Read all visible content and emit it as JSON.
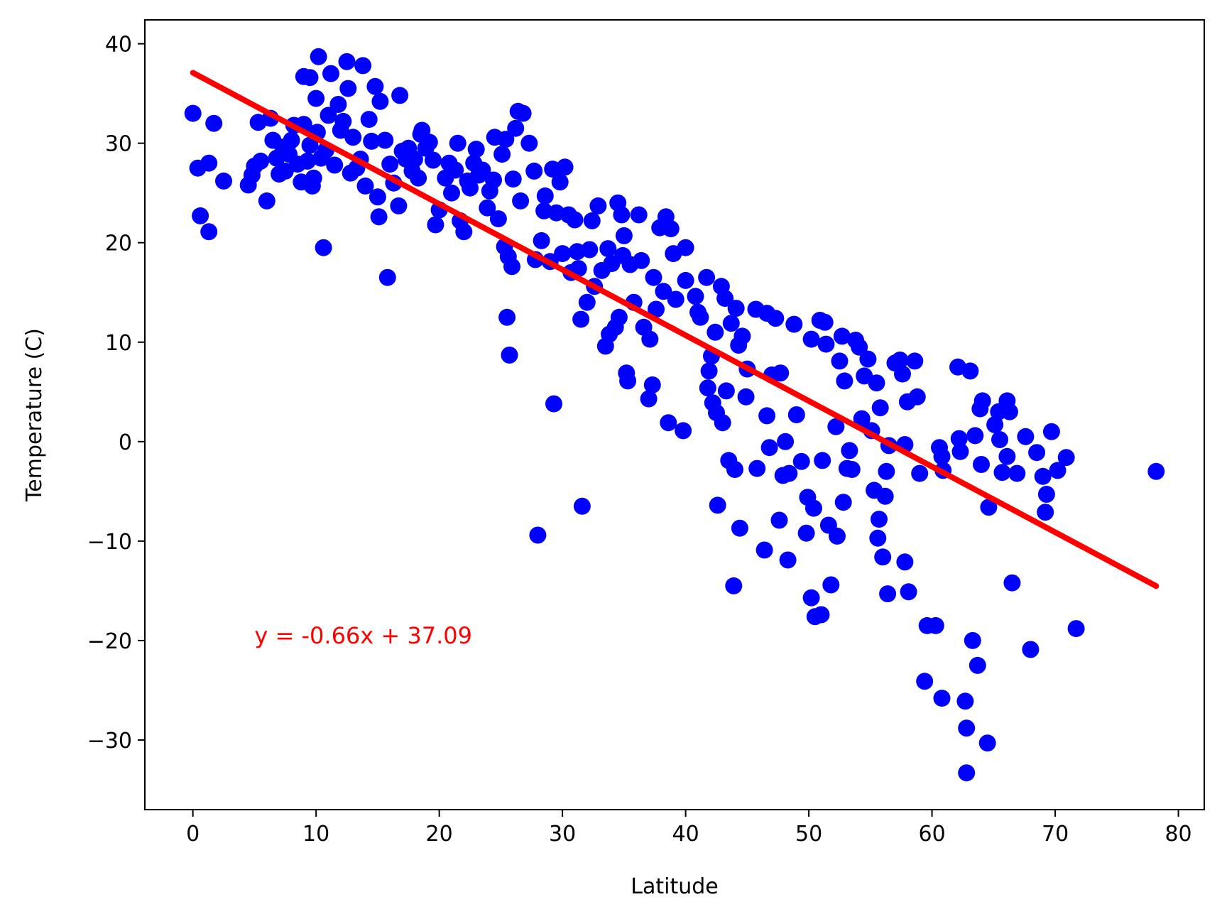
{
  "chart_data": {
    "type": "scatter",
    "title": "",
    "xlabel": "Latitude",
    "ylabel": "Temperature (C)",
    "xlim": [
      -3.9,
      82.1
    ],
    "ylim": [
      -37.0,
      42.4
    ],
    "xticks": [
      0,
      10,
      20,
      30,
      40,
      50,
      60,
      70,
      80
    ],
    "yticks": [
      -30,
      -20,
      -10,
      0,
      10,
      20,
      30,
      40
    ],
    "xtick_labels": [
      "0",
      "10",
      "20",
      "30",
      "40",
      "50",
      "60",
      "70",
      "80"
    ],
    "ytick_labels": [
      "−30",
      "−20",
      "−10",
      "0",
      "10",
      "20",
      "30",
      "40"
    ],
    "grid": false,
    "legend": "none",
    "series": [
      {
        "type": "scatter",
        "color": "#0000ff",
        "points": [
          [
            0,
            33
          ],
          [
            0.4,
            27.5
          ],
          [
            0.6,
            22.7
          ],
          [
            1.3,
            28
          ],
          [
            1.3,
            21.1
          ],
          [
            1.7,
            32
          ],
          [
            2.5,
            26.2
          ],
          [
            4.5,
            25.8
          ],
          [
            4.8,
            26.8
          ],
          [
            5,
            27.7
          ],
          [
            5.3,
            32.1
          ],
          [
            5.5,
            28.2
          ],
          [
            6,
            24.2
          ],
          [
            6.3,
            32.5
          ],
          [
            6.5,
            30.3
          ],
          [
            6.8,
            28.5
          ],
          [
            7,
            26.9
          ],
          [
            7.3,
            29.6
          ],
          [
            7.5,
            27.2
          ],
          [
            7.8,
            28.9
          ],
          [
            8,
            30.3
          ],
          [
            8.2,
            31.8
          ],
          [
            8.5,
            27.9
          ],
          [
            8.8,
            26.1
          ],
          [
            9,
            31.9
          ],
          [
            9,
            36.7
          ],
          [
            9.3,
            28.2
          ],
          [
            9.5,
            29.8
          ],
          [
            9.5,
            36.6
          ],
          [
            9.7,
            25.7
          ],
          [
            9.8,
            26.5
          ],
          [
            10,
            34.5
          ],
          [
            10.1,
            31.1
          ],
          [
            10.2,
            38.7
          ],
          [
            10.4,
            28.5
          ],
          [
            10.6,
            19.5
          ],
          [
            10.8,
            29.3
          ],
          [
            11,
            32.8
          ],
          [
            11.2,
            37
          ],
          [
            11.5,
            27.8
          ],
          [
            11.8,
            33.9
          ],
          [
            12,
            31.3
          ],
          [
            12.2,
            32.2
          ],
          [
            12.5,
            38.2
          ],
          [
            12.6,
            35.5
          ],
          [
            12.8,
            27
          ],
          [
            13,
            30.6
          ],
          [
            13.3,
            27.5
          ],
          [
            13.6,
            28.4
          ],
          [
            13.8,
            37.8
          ],
          [
            14,
            25.7
          ],
          [
            14.3,
            32.4
          ],
          [
            14.5,
            30.2
          ],
          [
            14.8,
            35.7
          ],
          [
            15,
            24.6
          ],
          [
            15.1,
            22.6
          ],
          [
            15.2,
            34.2
          ],
          [
            15.6,
            30.3
          ],
          [
            15.8,
            16.5
          ],
          [
            16,
            27.9
          ],
          [
            16.3,
            26
          ],
          [
            16.7,
            23.7
          ],
          [
            16.8,
            34.8
          ],
          [
            17,
            29.2
          ],
          [
            17.3,
            28.4
          ],
          [
            17.5,
            29.5
          ],
          [
            17.8,
            27.2
          ],
          [
            18,
            28.4
          ],
          [
            18.3,
            26.5
          ],
          [
            18.5,
            30.9
          ],
          [
            18.6,
            31.3
          ],
          [
            18.9,
            29.5
          ],
          [
            19.2,
            30.1
          ],
          [
            19.5,
            28.3
          ],
          [
            19.7,
            21.8
          ],
          [
            20,
            23.3
          ],
          [
            20.5,
            26.5
          ],
          [
            20.8,
            28
          ],
          [
            21,
            25
          ],
          [
            21.3,
            27.3
          ],
          [
            21.5,
            30
          ],
          [
            21.7,
            22.2
          ],
          [
            22,
            21.1
          ],
          [
            22.3,
            26.2
          ],
          [
            22.5,
            25.5
          ],
          [
            22.8,
            28
          ],
          [
            23,
            29.4
          ],
          [
            23.2,
            26.8
          ],
          [
            23.5,
            27.3
          ],
          [
            23.9,
            23.5
          ],
          [
            24.1,
            25.2
          ],
          [
            24.4,
            26.3
          ],
          [
            24.5,
            30.6
          ],
          [
            24.8,
            22.4
          ],
          [
            25.1,
            28.9
          ],
          [
            25.3,
            19.6
          ],
          [
            25.4,
            30.4
          ],
          [
            25.5,
            12.5
          ],
          [
            25.6,
            18.6
          ],
          [
            25.7,
            8.7
          ],
          [
            25.9,
            17.6
          ],
          [
            26,
            26.4
          ],
          [
            26.2,
            31.5
          ],
          [
            26.4,
            33.2
          ],
          [
            26.6,
            24.2
          ],
          [
            26.8,
            33
          ],
          [
            27.3,
            30
          ],
          [
            27.7,
            27.2
          ],
          [
            27.8,
            18.3
          ],
          [
            28,
            -9.4
          ],
          [
            28.3,
            20.2
          ],
          [
            28.5,
            23.2
          ],
          [
            28.6,
            24.7
          ],
          [
            29,
            18.1
          ],
          [
            29.2,
            27.4
          ],
          [
            29.3,
            3.8
          ],
          [
            29.5,
            23
          ],
          [
            29.8,
            26.1
          ],
          [
            30,
            18.9
          ],
          [
            30.2,
            27.6
          ],
          [
            30.5,
            22.8
          ],
          [
            30.7,
            17
          ],
          [
            31,
            22.3
          ],
          [
            31.2,
            19.1
          ],
          [
            31.3,
            17.4
          ],
          [
            31.5,
            12.3
          ],
          [
            31.6,
            -6.5
          ],
          [
            32,
            14
          ],
          [
            32.2,
            19.3
          ],
          [
            32.4,
            22.2
          ],
          [
            32.6,
            15.6
          ],
          [
            32.9,
            23.7
          ],
          [
            33.2,
            17.2
          ],
          [
            33.5,
            9.6
          ],
          [
            33.7,
            19.4
          ],
          [
            33.8,
            10.8
          ],
          [
            34,
            17.9
          ],
          [
            34.3,
            11.5
          ],
          [
            34.5,
            24
          ],
          [
            34.6,
            12.5
          ],
          [
            34.8,
            22.8
          ],
          [
            34.9,
            18.7
          ],
          [
            35,
            20.7
          ],
          [
            35.2,
            6.9
          ],
          [
            35.3,
            6.1
          ],
          [
            35.5,
            17.8
          ],
          [
            35.8,
            14
          ],
          [
            36.2,
            22.8
          ],
          [
            36.4,
            18.2
          ],
          [
            36.6,
            11.5
          ],
          [
            37,
            4.3
          ],
          [
            37.1,
            10.3
          ],
          [
            37.3,
            5.7
          ],
          [
            37.4,
            16.5
          ],
          [
            37.6,
            13.3
          ],
          [
            37.9,
            21.5
          ],
          [
            38.2,
            15.1
          ],
          [
            38.4,
            22.6
          ],
          [
            38.6,
            1.9
          ],
          [
            38.8,
            21.4
          ],
          [
            39,
            18.9
          ],
          [
            39.2,
            14.3
          ],
          [
            39.8,
            1.1
          ],
          [
            40,
            19.5
          ],
          [
            40,
            16.2
          ],
          [
            40.8,
            14.6
          ],
          [
            41,
            13
          ],
          [
            41.2,
            12.5
          ],
          [
            41.7,
            16.5
          ],
          [
            41.8,
            5.4
          ],
          [
            41.9,
            7.1
          ],
          [
            42.1,
            8.6
          ],
          [
            42.2,
            3.9
          ],
          [
            42.4,
            11
          ],
          [
            42.5,
            2.9
          ],
          [
            42.6,
            -6.4
          ],
          [
            42.9,
            15.6
          ],
          [
            43,
            1.9
          ],
          [
            43.2,
            14.4
          ],
          [
            43.3,
            5.1
          ],
          [
            43.5,
            -1.9
          ],
          [
            43.7,
            11.9
          ],
          [
            43.9,
            -14.5
          ],
          [
            44,
            -2.8
          ],
          [
            44.1,
            13.4
          ],
          [
            44.3,
            9.7
          ],
          [
            44.4,
            -8.7
          ],
          [
            44.6,
            10.6
          ],
          [
            44.9,
            4.5
          ],
          [
            45,
            7.3
          ],
          [
            45.7,
            13.3
          ],
          [
            45.8,
            -2.7
          ],
          [
            46.4,
            -10.9
          ],
          [
            46.6,
            12.9
          ],
          [
            46.6,
            2.6
          ],
          [
            46.8,
            -0.6
          ],
          [
            47,
            6.7
          ],
          [
            47.3,
            12.4
          ],
          [
            47.6,
            -7.9
          ],
          [
            47.7,
            6.9
          ],
          [
            47.9,
            -3.4
          ],
          [
            48.1,
            0
          ],
          [
            48.3,
            -11.9
          ],
          [
            48.4,
            -3.2
          ],
          [
            48.8,
            11.8
          ],
          [
            49,
            2.7
          ],
          [
            49.4,
            -2
          ],
          [
            49.8,
            -9.2
          ],
          [
            49.9,
            -5.6
          ],
          [
            50.2,
            10.3
          ],
          [
            50.2,
            -15.7
          ],
          [
            50.4,
            -6.7
          ],
          [
            50.5,
            -17.6
          ],
          [
            50.9,
            12.2
          ],
          [
            51,
            -17.4
          ],
          [
            51.1,
            -1.9
          ],
          [
            51.3,
            12
          ],
          [
            51.4,
            9.8
          ],
          [
            51.6,
            -8.4
          ],
          [
            51.8,
            -14.4
          ],
          [
            52.2,
            1.5
          ],
          [
            52.3,
            -9.5
          ],
          [
            52.5,
            8.1
          ],
          [
            52.7,
            10.6
          ],
          [
            52.8,
            -6.1
          ],
          [
            52.9,
            6.1
          ],
          [
            53.1,
            -2.7
          ],
          [
            53.3,
            -0.9
          ],
          [
            53.5,
            -2.8
          ],
          [
            53.8,
            10.2
          ],
          [
            54.1,
            9.5
          ],
          [
            54.3,
            2.3
          ],
          [
            54.5,
            6.6
          ],
          [
            54.8,
            8.3
          ],
          [
            55.1,
            1.1
          ],
          [
            55.3,
            -4.9
          ],
          [
            55.5,
            5.9
          ],
          [
            55.6,
            -9.7
          ],
          [
            55.7,
            -7.8
          ],
          [
            55.8,
            3.4
          ],
          [
            56,
            -11.6
          ],
          [
            56.2,
            -5.5
          ],
          [
            56.3,
            -3
          ],
          [
            56.4,
            -15.3
          ],
          [
            56.5,
            -0.4
          ],
          [
            57,
            7.9
          ],
          [
            57.4,
            8.2
          ],
          [
            57.6,
            6.8
          ],
          [
            57.8,
            -0.3
          ],
          [
            57.8,
            -12.1
          ],
          [
            58,
            4
          ],
          [
            58.1,
            -15.1
          ],
          [
            58.6,
            8.1
          ],
          [
            58.8,
            4.5
          ],
          [
            59,
            -3.2
          ],
          [
            59.4,
            -24.1
          ],
          [
            59.6,
            -18.5
          ],
          [
            60.3,
            -18.5
          ],
          [
            60.6,
            -0.6
          ],
          [
            60.8,
            -1.5
          ],
          [
            60.8,
            -25.8
          ],
          [
            60.9,
            -2.9
          ],
          [
            62.1,
            7.5
          ],
          [
            62.2,
            0.3
          ],
          [
            62.3,
            -1
          ],
          [
            62.7,
            -26.1
          ],
          [
            62.8,
            -28.8
          ],
          [
            62.8,
            -33.3
          ],
          [
            63.1,
            7.1
          ],
          [
            63.3,
            -20
          ],
          [
            63.5,
            0.6
          ],
          [
            63.7,
            -22.5
          ],
          [
            63.9,
            3.3
          ],
          [
            64,
            -2.3
          ],
          [
            64.1,
            4.1
          ],
          [
            64.5,
            -30.3
          ],
          [
            64.6,
            -6.6
          ],
          [
            65.1,
            1.7
          ],
          [
            65.4,
            3
          ],
          [
            65.5,
            0.2
          ],
          [
            65.7,
            -3.1
          ],
          [
            66.1,
            -1.5
          ],
          [
            66.1,
            4.1
          ],
          [
            66.3,
            3
          ],
          [
            66.5,
            -14.2
          ],
          [
            66.9,
            -3.2
          ],
          [
            67.6,
            0.5
          ],
          [
            68,
            -20.9
          ],
          [
            68.5,
            -1.1
          ],
          [
            69,
            -3.5
          ],
          [
            69.2,
            -7.1
          ],
          [
            69.3,
            -5.3
          ],
          [
            69.7,
            1
          ],
          [
            70.2,
            -2.9
          ],
          [
            70.9,
            -1.6
          ],
          [
            71.7,
            -18.8
          ],
          [
            78.2,
            -3
          ]
        ]
      },
      {
        "type": "line",
        "color": "#ff0000",
        "x": [
          0,
          78.2
        ],
        "y": [
          37.09,
          -14.52
        ]
      }
    ],
    "annotations": [
      {
        "text": "y = -0.66x + 37.09",
        "x": 5,
        "y": -20.3,
        "color": "#ff0000"
      }
    ]
  }
}
